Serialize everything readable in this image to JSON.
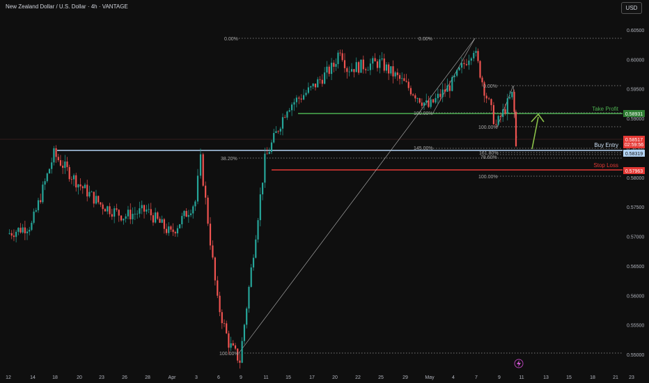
{
  "header": {
    "title": "New Zealand Dollar / U.S. Dollar · 4h · VANTAGE",
    "currency_button": "USD"
  },
  "price_scale": {
    "min": 0.547,
    "max": 0.608,
    "ticks": [
      "0.60500",
      "0.60000",
      "0.59500",
      "0.59000",
      "0.58500",
      "0.58000",
      "0.57500",
      "0.57000",
      "0.56500",
      "0.56000",
      "0.55500",
      "0.55000"
    ]
  },
  "time_axis": {
    "labels": [
      "12",
      "14",
      "18",
      "20",
      "23",
      "26",
      "28",
      "Apr",
      "3",
      "6",
      "9",
      "11",
      "15",
      "17",
      "20",
      "22",
      "25",
      "29",
      "May",
      "4",
      "7",
      "9",
      "11",
      "13",
      "15",
      "18",
      "21",
      "23"
    ]
  },
  "annotations": {
    "take_profit": {
      "label": "Take Profit",
      "price": 0.58931,
      "price_text": "0.58931",
      "color": "#4caf50"
    },
    "buy_entry": {
      "label": "Buy Entry",
      "price": 0.58319,
      "price_text": "0.58319",
      "color": "#b3d4f5"
    },
    "stop_loss": {
      "label": "Stop Loss",
      "price": 0.57963,
      "price_text": "0.57963",
      "color": "#e53935"
    },
    "last_price": {
      "price": 0.58517,
      "price_text": "0.58517",
      "countdown": "02:59:56",
      "color": "#e53935"
    }
  },
  "fib_labels": {
    "left_top": "0.00%",
    "left_38": "38.20%",
    "left_bottom": "100.00%",
    "right_top": "0.00%",
    "right_100_upper": "100.00%",
    "small_0": "0.00%",
    "small_100": "100.00%",
    "ext_145": "145.00%",
    "ext_161": "161.80%",
    "ext_78": "78.60%",
    "right_100_lower": "100.00%"
  },
  "chart_data": {
    "type": "candlestick",
    "title": "New Zealand Dollar / U.S. Dollar · 4h · VANTAGE",
    "ylim": [
      0.547,
      0.608
    ],
    "candle_colors": {
      "up": "#26a69a",
      "down": "#ef5350"
    },
    "path_waypoints": [
      {
        "x": "12 Mar",
        "price": 0.5705
      },
      {
        "x": "14 Mar",
        "price": 0.572
      },
      {
        "x": "18 Mar",
        "price": 0.584
      },
      {
        "x": "20 Mar",
        "price": 0.579
      },
      {
        "x": "23 Mar",
        "price": 0.5755
      },
      {
        "x": "26 Mar",
        "price": 0.5735
      },
      {
        "x": "28 Mar",
        "price": 0.5745
      },
      {
        "x": "Apr",
        "price": 0.5705
      },
      {
        "x": "3 Apr",
        "price": 0.576
      },
      {
        "x": "4 Apr",
        "price": 0.583
      },
      {
        "x": "6 Apr",
        "price": 0.559
      },
      {
        "x": "8 Apr",
        "price": 0.552
      },
      {
        "x": "9 Apr",
        "price": 0.549
      },
      {
        "x": "11 Apr",
        "price": 0.583
      },
      {
        "x": "15 Apr",
        "price": 0.592
      },
      {
        "x": "17 Apr",
        "price": 0.595
      },
      {
        "x": "20 Apr",
        "price": 0.599
      },
      {
        "x": "21 Apr",
        "price": 0.602
      },
      {
        "x": "22 Apr",
        "price": 0.5985
      },
      {
        "x": "25 Apr",
        "price": 0.5995
      },
      {
        "x": "29 Apr",
        "price": 0.596
      },
      {
        "x": "2 May",
        "price": 0.592
      },
      {
        "x": "4 May",
        "price": 0.596
      },
      {
        "x": "7 May",
        "price": 0.602
      },
      {
        "x": "8 May",
        "price": 0.595
      },
      {
        "x": "9 May",
        "price": 0.5888
      },
      {
        "x": "10 May",
        "price": 0.594
      },
      {
        "x": "11 May",
        "price": 0.591
      },
      {
        "x": "12 May",
        "price": 0.5852
      }
    ],
    "horizontal_levels": [
      {
        "name": "Take Profit",
        "price": 0.58931
      },
      {
        "name": "Buy Entry",
        "price": 0.58319
      },
      {
        "name": "Stop Loss",
        "price": 0.57963
      }
    ],
    "fib_levels": [
      {
        "label": "0.00%",
        "price": 0.6023
      },
      {
        "label": "38.20%",
        "price": 0.582
      },
      {
        "label": "100.00%",
        "price": 0.5488
      },
      {
        "label": "100.00%",
        "price": 0.5895
      },
      {
        "label": "0.00%",
        "price": 0.5943
      },
      {
        "label": "100.00%",
        "price": 0.5873
      },
      {
        "label": "145.00%",
        "price": 0.5836
      },
      {
        "label": "161.80%",
        "price": 0.5829
      },
      {
        "label": "78.60%",
        "price": 0.5826
      },
      {
        "label": "100.00%",
        "price": 0.5787
      }
    ]
  }
}
